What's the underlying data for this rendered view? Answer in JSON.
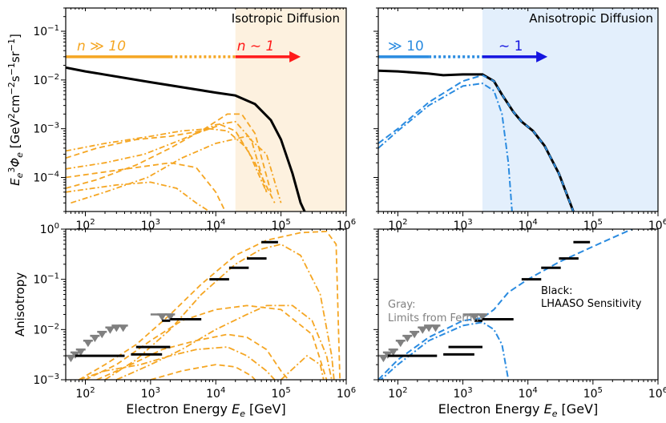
{
  "colors": {
    "orange": "#f5a623",
    "red": "#ff1a1a",
    "blue": "#2a8be0",
    "black": "#000000",
    "gray": "#808080",
    "iso_shade": "#fdf1df",
    "aniso_shade": "#e3effc"
  },
  "chart_data": [
    {
      "id": "top-left",
      "type": "line",
      "title": "Isotropic Diffusion",
      "xlabel": "",
      "ylabel": "E_e^3 Φ_e [GeV^2 cm^-2 s^-1 sr^-1]",
      "xscale": "log",
      "yscale": "log",
      "xlim": [
        50,
        1000000
      ],
      "ylim": [
        2e-05,
        0.3
      ],
      "x_ticks": [
        "10^2",
        "10^3",
        "10^4",
        "10^5",
        "10^6"
      ],
      "y_ticks": [
        "10^-4",
        "10^-3",
        "10^-2",
        "10^-1"
      ],
      "shaded_region_x": [
        20000,
        1000000
      ],
      "arrow_labels": {
        "left": "n ≫ 10",
        "right": "n ∼ 1"
      },
      "arrow_y": 0.03,
      "arrow_segments": [
        [
          50,
          2000,
          "solid"
        ],
        [
          2000,
          20000,
          "dotted"
        ],
        [
          20000,
          200000,
          "arrow"
        ]
      ],
      "total_curve": [
        [
          50,
          0.018
        ],
        [
          100,
          0.015
        ],
        [
          1000,
          0.009
        ],
        [
          10000,
          0.0055
        ],
        [
          20000,
          0.0048
        ],
        [
          40000,
          0.0032
        ],
        [
          70000,
          0.0015
        ],
        [
          100000,
          0.0006
        ],
        [
          150000,
          0.00012
        ],
        [
          200000,
          3e-05
        ],
        [
          230000,
          2e-05
        ]
      ]
    },
    {
      "id": "top-right",
      "type": "line",
      "title": "Anisotropic Diffusion",
      "xscale": "log",
      "yscale": "log",
      "xlim": [
        50,
        1000000
      ],
      "ylim": [
        2e-05,
        0.3
      ],
      "x_ticks": [
        "10^2",
        "10^3",
        "10^4",
        "10^5",
        "10^6"
      ],
      "shaded_region_x": [
        2000,
        1000000
      ],
      "arrow_labels": {
        "left": "≫ 10",
        "right": "∼ 1"
      },
      "arrow_y": 0.03,
      "arrow_segments": [
        [
          50,
          300,
          "solid"
        ],
        [
          300,
          2000,
          "dotted"
        ],
        [
          2000,
          20000,
          "arrow"
        ]
      ],
      "total_curve": [
        [
          50,
          0.0155
        ],
        [
          100,
          0.015
        ],
        [
          300,
          0.0135
        ],
        [
          500,
          0.0125
        ],
        [
          1000,
          0.013
        ],
        [
          2000,
          0.013
        ],
        [
          3000,
          0.0095
        ],
        [
          4000,
          0.005
        ],
        [
          6000,
          0.0022
        ],
        [
          8000,
          0.0014
        ],
        [
          12000,
          0.0009
        ],
        [
          18000,
          0.00045
        ],
        [
          30000,
          0.00012
        ],
        [
          50000,
          2e-05
        ]
      ],
      "dashed_curve": [
        [
          50,
          0.0005
        ],
        [
          100,
          0.001
        ],
        [
          300,
          0.0035
        ],
        [
          1000,
          0.0095
        ],
        [
          2000,
          0.0125
        ],
        [
          3000,
          0.0095
        ],
        [
          4000,
          0.005
        ],
        [
          6000,
          0.0022
        ],
        [
          8000,
          0.0014
        ],
        [
          12000,
          0.0009
        ],
        [
          18000,
          0.00045
        ],
        [
          30000,
          0.00012
        ],
        [
          50000,
          2e-05
        ]
      ],
      "dashdot_curve": [
        [
          50,
          0.0004
        ],
        [
          100,
          0.0009
        ],
        [
          300,
          0.003
        ],
        [
          1000,
          0.0075
        ],
        [
          2000,
          0.0085
        ],
        [
          3000,
          0.006
        ],
        [
          4000,
          0.002
        ],
        [
          5000,
          0.0002
        ],
        [
          5700,
          2e-05
        ]
      ]
    },
    {
      "id": "bottom-left",
      "type": "line",
      "xlabel": "Electron Energy E_e [GeV]",
      "ylabel": "Anisotropy",
      "xscale": "log",
      "yscale": "log",
      "xlim": [
        50,
        1000000
      ],
      "ylim": [
        0.001,
        1.0
      ],
      "x_ticks": [
        "10^2",
        "10^3",
        "10^4",
        "10^5",
        "10^6"
      ],
      "y_ticks": [
        "10^-3",
        "10^-2",
        "10^-1",
        "10^0"
      ],
      "fermi_limits": [
        [
          60,
          0.003
        ],
        [
          70,
          0.0035
        ],
        [
          85,
          0.004
        ],
        [
          110,
          0.006
        ],
        [
          140,
          0.0075
        ],
        [
          180,
          0.009
        ],
        [
          240,
          0.011
        ],
        [
          300,
          0.012
        ],
        [
          380,
          0.012
        ],
        [
          1500,
          0.02
        ],
        [
          2000,
          0.02
        ]
      ],
      "lhaaso_sensitivity": [
        [
          70,
          400,
          0.003
        ],
        [
          500,
          1500,
          0.0032
        ],
        [
          600,
          2000,
          0.0045
        ],
        [
          1500,
          2000,
          0.015
        ],
        [
          2000,
          6000,
          0.016
        ],
        [
          8000,
          16000,
          0.1
        ],
        [
          16000,
          32000,
          0.17
        ],
        [
          30000,
          60000,
          0.26
        ],
        [
          50000,
          90000,
          0.55
        ]
      ]
    },
    {
      "id": "bottom-right",
      "type": "line",
      "xlabel": "Electron Energy E_e [GeV]",
      "xscale": "log",
      "yscale": "log",
      "xlim": [
        50,
        1000000
      ],
      "ylim": [
        0.001,
        1.0
      ],
      "x_ticks": [
        "10^2",
        "10^3",
        "10^4",
        "10^5",
        "10^6"
      ],
      "annotations": {
        "gray_label": "Gray:",
        "gray_text": "Limits from Fermi",
        "black_label": "Black:",
        "black_text": "LHAASO Sensitivity"
      },
      "fermi_limits": [
        [
          60,
          0.003
        ],
        [
          70,
          0.0035
        ],
        [
          85,
          0.004
        ],
        [
          110,
          0.006
        ],
        [
          140,
          0.0075
        ],
        [
          180,
          0.009
        ],
        [
          240,
          0.011
        ],
        [
          300,
          0.012
        ],
        [
          380,
          0.012
        ],
        [
          1500,
          0.02
        ],
        [
          2000,
          0.02
        ]
      ],
      "lhaaso_sensitivity": [
        [
          70,
          400,
          0.003
        ],
        [
          500,
          1500,
          0.0032
        ],
        [
          600,
          2000,
          0.0045
        ],
        [
          1500,
          2000,
          0.015
        ],
        [
          2000,
          6000,
          0.016
        ],
        [
          8000,
          16000,
          0.1
        ],
        [
          16000,
          32000,
          0.17
        ],
        [
          30000,
          60000,
          0.26
        ],
        [
          50000,
          90000,
          0.55
        ]
      ],
      "dashed_curve": [
        [
          50,
          0.001
        ],
        [
          100,
          0.0025
        ],
        [
          300,
          0.007
        ],
        [
          1000,
          0.015
        ],
        [
          2000,
          0.017
        ],
        [
          3000,
          0.025
        ],
        [
          5000,
          0.055
        ],
        [
          10000,
          0.1
        ],
        [
          30000,
          0.22
        ],
        [
          100000,
          0.45
        ],
        [
          300000,
          0.85
        ],
        [
          400000,
          1.0
        ]
      ],
      "dashdot_curve": [
        [
          50,
          0.0009
        ],
        [
          100,
          0.002
        ],
        [
          300,
          0.006
        ],
        [
          1000,
          0.012
        ],
        [
          2000,
          0.014
        ],
        [
          3000,
          0.01
        ],
        [
          4000,
          0.005
        ],
        [
          5000,
          0.001
        ]
      ]
    }
  ]
}
